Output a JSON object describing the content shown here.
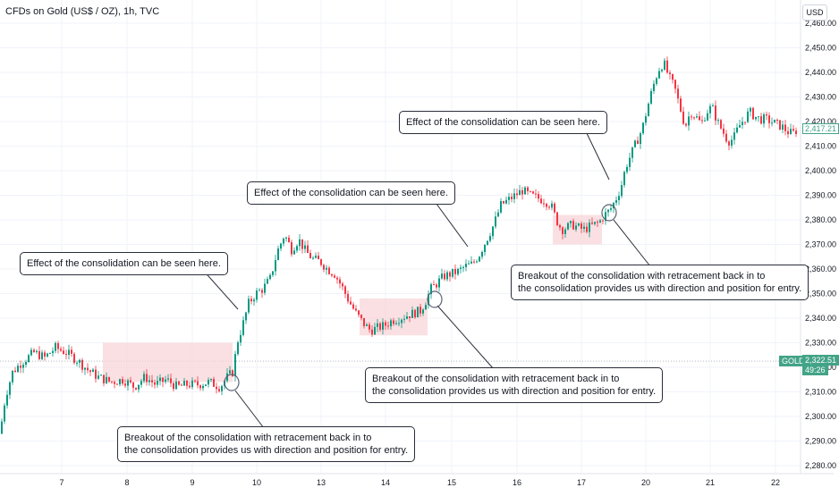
{
  "header": {
    "title": "CFDs on Gold (US$ / OZ), 1h, TVC",
    "currency": "USD"
  },
  "price_tag": {
    "symbol": "GOLD",
    "price": "2,322.51",
    "countdown": "49:26"
  },
  "last_price_tag": "2,417.21",
  "annotations": {
    "effect_1": "Effect of the consolidation can be seen here.",
    "effect_2": "Effect of the consolidation can be seen here.",
    "effect_3": "Effect of the consolidation can be seen here.",
    "breakout_1_line1": "Breakout of the consolidation with retracement back in to",
    "breakout_1_line2": "the consolidation provides us with direction and position for entry.",
    "breakout_2_line1": "Breakout of the consolidation with retracement back in to",
    "breakout_2_line2": "the consolidation provides us with direction and position for entry.",
    "breakout_3_line1": "Breakout of the consolidation with retracement back in to",
    "breakout_3_line2": "the consolidation provides us with direction and position for entry."
  },
  "colors": {
    "up": "#089981",
    "down": "#f23645",
    "zone": "#f8d3d6",
    "price_tag": "#43a387",
    "grid": "#f0f3fa"
  },
  "chart_data": {
    "type": "candlestick",
    "instrument": "CFDs on Gold (US$ / OZ)",
    "interval": "1h",
    "ylim": [
      2275,
      2465
    ],
    "y_ticks": [
      2280,
      2290,
      2300,
      2310,
      2320,
      2330,
      2340,
      2350,
      2360,
      2370,
      2380,
      2390,
      2400,
      2410,
      2420,
      2430,
      2440,
      2450,
      2460
    ],
    "x_ticks": [
      "7",
      "8",
      "9",
      "10",
      "13",
      "14",
      "15",
      "16",
      "17",
      "20",
      "21",
      "22"
    ],
    "current_price": 2322.51,
    "last_price": 2417.21,
    "path": [
      [
        0,
        2293
      ],
      [
        6,
        2308
      ],
      [
        14,
        2318
      ],
      [
        24,
        2322
      ],
      [
        38,
        2326
      ],
      [
        50,
        2324
      ],
      [
        62,
        2328
      ],
      [
        74,
        2326
      ],
      [
        86,
        2323
      ],
      [
        98,
        2319
      ],
      [
        110,
        2316
      ],
      [
        124,
        2314
      ],
      [
        138,
        2315
      ],
      [
        150,
        2312
      ],
      [
        162,
        2316
      ],
      [
        174,
        2313
      ],
      [
        186,
        2315
      ],
      [
        198,
        2312
      ],
      [
        210,
        2313
      ],
      [
        222,
        2313
      ],
      [
        234,
        2314
      ],
      [
        246,
        2312
      ],
      [
        254,
        2316
      ],
      [
        260,
        2318
      ],
      [
        266,
        2331
      ],
      [
        272,
        2338
      ],
      [
        278,
        2346
      ],
      [
        286,
        2350
      ],
      [
        294,
        2352
      ],
      [
        302,
        2356
      ],
      [
        310,
        2367
      ],
      [
        318,
        2374
      ],
      [
        326,
        2368
      ],
      [
        334,
        2372
      ],
      [
        342,
        2367
      ],
      [
        350,
        2364
      ],
      [
        358,
        2363
      ],
      [
        366,
        2360
      ],
      [
        374,
        2358
      ],
      [
        382,
        2353
      ],
      [
        390,
        2347
      ],
      [
        398,
        2342
      ],
      [
        406,
        2338
      ],
      [
        414,
        2335
      ],
      [
        422,
        2336
      ],
      [
        430,
        2337
      ],
      [
        438,
        2339
      ],
      [
        446,
        2340
      ],
      [
        454,
        2341
      ],
      [
        462,
        2342
      ],
      [
        470,
        2343
      ],
      [
        476,
        2347
      ],
      [
        482,
        2352
      ],
      [
        488,
        2354
      ],
      [
        496,
        2357
      ],
      [
        504,
        2358
      ],
      [
        512,
        2359
      ],
      [
        520,
        2361
      ],
      [
        528,
        2362
      ],
      [
        536,
        2366
      ],
      [
        544,
        2372
      ],
      [
        552,
        2378
      ],
      [
        560,
        2386
      ],
      [
        568,
        2388
      ],
      [
        576,
        2390
      ],
      [
        584,
        2392
      ],
      [
        592,
        2390
      ],
      [
        600,
        2389
      ],
      [
        608,
        2388
      ],
      [
        616,
        2386
      ],
      [
        622,
        2380
      ],
      [
        628,
        2376
      ],
      [
        634,
        2377
      ],
      [
        640,
        2378
      ],
      [
        646,
        2377
      ],
      [
        652,
        2376
      ],
      [
        658,
        2377
      ],
      [
        664,
        2378
      ],
      [
        670,
        2379
      ],
      [
        676,
        2382
      ],
      [
        682,
        2384
      ],
      [
        688,
        2388
      ],
      [
        694,
        2393
      ],
      [
        700,
        2402
      ],
      [
        706,
        2407
      ],
      [
        712,
        2412
      ],
      [
        718,
        2417
      ],
      [
        724,
        2426
      ],
      [
        730,
        2434
      ],
      [
        736,
        2441
      ],
      [
        742,
        2444
      ],
      [
        748,
        2438
      ],
      [
        754,
        2434
      ],
      [
        760,
        2426
      ],
      [
        766,
        2418
      ],
      [
        772,
        2424
      ],
      [
        778,
        2422
      ],
      [
        784,
        2419
      ],
      [
        790,
        2424
      ],
      [
        796,
        2426
      ],
      [
        802,
        2420
      ],
      [
        808,
        2416
      ],
      [
        814,
        2412
      ],
      [
        820,
        2413
      ],
      [
        826,
        2418
      ],
      [
        832,
        2421
      ],
      [
        838,
        2424
      ],
      [
        844,
        2422
      ],
      [
        850,
        2421
      ],
      [
        856,
        2421
      ],
      [
        862,
        2420
      ],
      [
        868,
        2419
      ],
      [
        874,
        2418
      ],
      [
        880,
        2416
      ],
      [
        886,
        2415
      ],
      [
        892,
        2417
      ]
    ],
    "consolidation_zones": [
      {
        "x0": 115,
        "x1": 260,
        "y_low": 2314,
        "y_high": 2330
      },
      {
        "x0": 402,
        "x1": 478,
        "y_low": 2333,
        "y_high": 2348
      },
      {
        "x0": 618,
        "x1": 673,
        "y_low": 2370,
        "y_high": 2382
      }
    ]
  }
}
